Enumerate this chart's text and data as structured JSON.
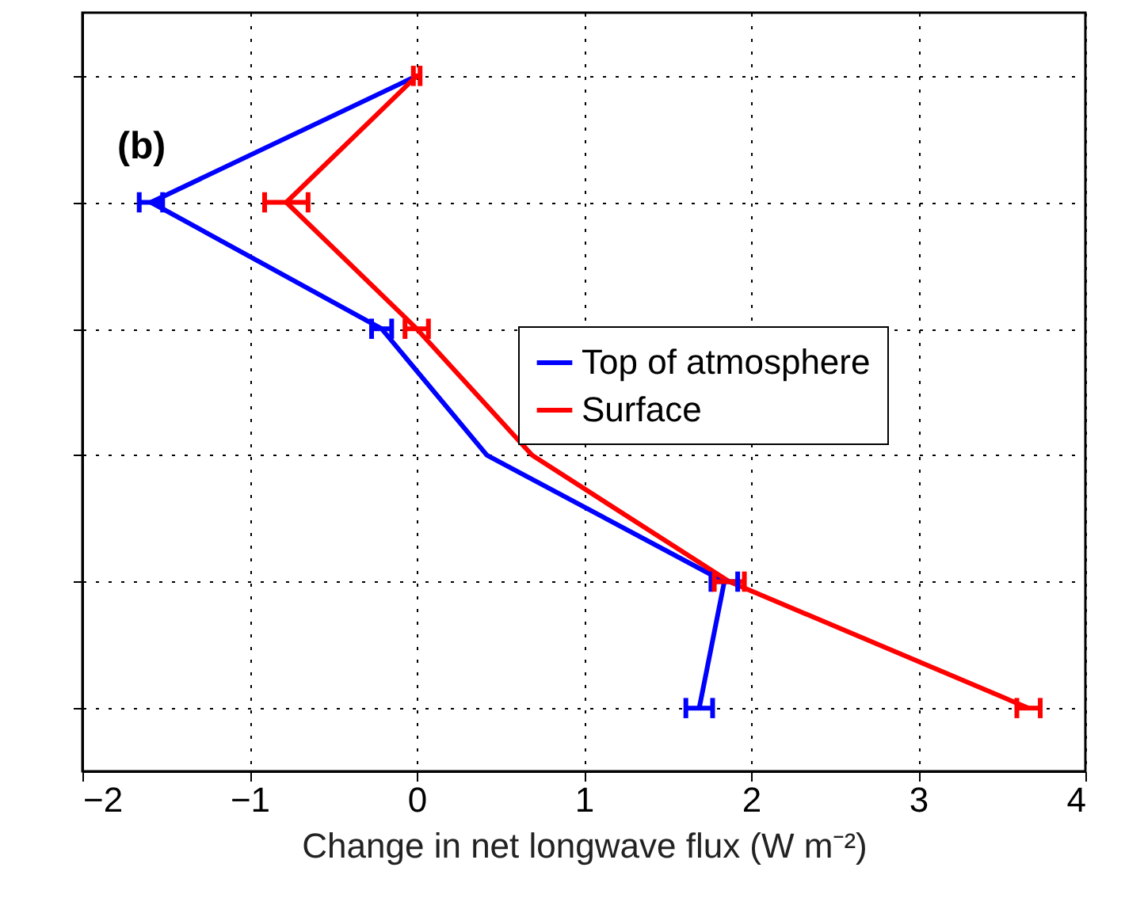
{
  "chart_data": {
    "type": "line",
    "orientation": "horizontal",
    "xlabel": "Change in net longwave flux (W m⁻²)",
    "categories": [
      null,
      null,
      null,
      null,
      null,
      null
    ],
    "xlim": [
      -2,
      4
    ],
    "xticks": [
      -2,
      -1,
      0,
      1,
      2,
      3,
      4
    ],
    "grid": true,
    "legend": "right",
    "annotations": [
      "(b)"
    ],
    "series": [
      {
        "name": "Top of atmosphere",
        "color": "#0000ff",
        "values": [
          0,
          -1.59,
          -0.21,
          0.42,
          1.84,
          1.69
        ],
        "errors": [
          null,
          0.07,
          0.06,
          null,
          0.08,
          0.08
        ]
      },
      {
        "name": "Surface",
        "color": "#ff0000",
        "values": [
          0,
          -0.78,
          0,
          0.69,
          1.87,
          3.66
        ],
        "errors": [
          0.02,
          0.13,
          0.07,
          null,
          0.09,
          0.07
        ]
      }
    ]
  }
}
